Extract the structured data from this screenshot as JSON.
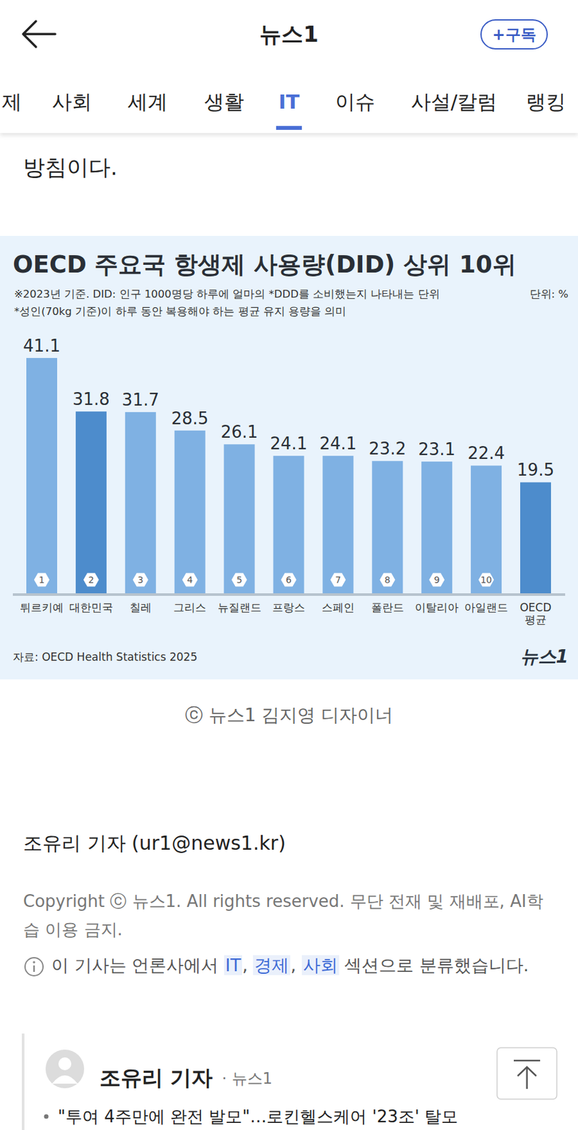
{
  "header": {
    "title": "뉴스1",
    "subscribe": "+구독"
  },
  "nav": {
    "tabs": [
      "제",
      "사회",
      "세계",
      "생활",
      "IT",
      "이슈",
      "사설/칼럼",
      "랭킹"
    ],
    "active": 4
  },
  "article": {
    "text_end": "방침이다."
  },
  "chart_data": {
    "type": "bar",
    "title": "OECD 주요국 항생제 사용량(DID) 상위 10위",
    "notes": [
      "※2023년 기준. DID: 인구 1000명당 하루에 얼마의 *DDD를 소비했는지 나타내는 단위",
      "*성인(70kg 기준)이 하루 동안 복용해야 하는 평균 유지 용량을 의미"
    ],
    "unit": "단위: %",
    "categories": [
      "튀르키예",
      "대한민국",
      "칠레",
      "그리스",
      "뉴질랜드",
      "프랑스",
      "스페인",
      "폴란드",
      "이탈리아",
      "아일랜드",
      "OECD 평균"
    ],
    "values": [
      41.1,
      31.8,
      31.7,
      28.5,
      26.1,
      24.1,
      24.1,
      23.2,
      23.1,
      22.4,
      19.5
    ],
    "ranks": [
      1,
      2,
      3,
      4,
      5,
      6,
      7,
      8,
      9,
      10,
      null
    ],
    "colors": [
      "#7fb1e3",
      "#4d8ccc",
      "#7fb1e3",
      "#7fb1e3",
      "#7fb1e3",
      "#7fb1e3",
      "#7fb1e3",
      "#7fb1e3",
      "#7fb1e3",
      "#7fb1e3",
      "#4d8ccc"
    ],
    "ylim": [
      0,
      45
    ],
    "grid": false,
    "data_labels": true,
    "tick_labels": "x",
    "source": "자료: OECD Health Statistics 2025",
    "logo": "뉴스1"
  },
  "caption": "ⓒ 뉴스1 김지영 디자이너",
  "byline": "조유리 기자 (ur1@news1.kr)",
  "copyright": "Copyright ⓒ 뉴스1. All rights reserved. 무단 전재 및 재배포, AI학습 이용 금지.",
  "classification": {
    "prefix": "이 기사는 언론사에서",
    "sections": [
      "IT",
      "경제",
      "사회"
    ],
    "separator": ", ",
    "suffix": "섹션으로 분류했습니다."
  },
  "reporter_card": {
    "name": "조유리 기자",
    "outlet": "· 뉴스1",
    "headline": "\"투여 4주만에 완전 발모\"…로킨헬스케어 '23조' 탈모"
  }
}
